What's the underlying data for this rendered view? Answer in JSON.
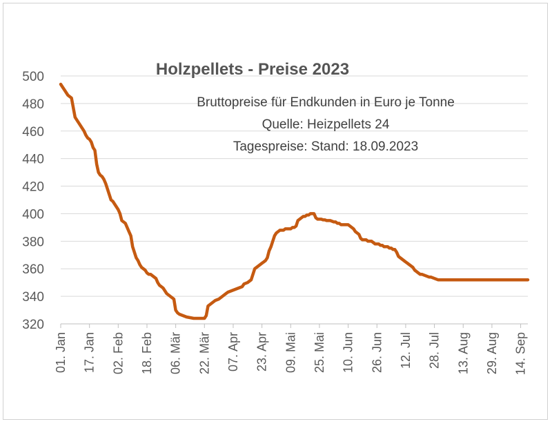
{
  "chart_data": {
    "type": "line",
    "title": "Holzpellets - Preise 2023",
    "subtitle_lines": [
      "Bruttopreise für Endkunden in Euro je Tonne",
      "Quelle: Heizpellets 24",
      "Tagespreise: Stand: 18.09.2023"
    ],
    "xlabel": "",
    "ylabel": "",
    "ylim": [
      320,
      500
    ],
    "yticks": [
      320,
      340,
      360,
      380,
      400,
      420,
      440,
      460,
      480,
      500
    ],
    "grid": true,
    "legend": "none",
    "line_color": "#C55A11",
    "x_range_days": [
      0,
      260
    ],
    "x_tick_labels": [
      "01. Jan",
      "17. Jan",
      "02. Feb",
      "18. Feb",
      "06. Mär",
      "22. Mär",
      "07. Apr",
      "23. Apr",
      "09. Mai",
      "25. Mai",
      "10. Jun",
      "26. Jun",
      "12. Jul",
      "28. Jul",
      "13. Aug",
      "29. Aug",
      "14. Sep"
    ],
    "x_tick_days": [
      0,
      16,
      32,
      48,
      64,
      80,
      96,
      112,
      128,
      144,
      160,
      176,
      192,
      208,
      224,
      240,
      256
    ],
    "series": [
      {
        "x": [
          0,
          1,
          2,
          3,
          4,
          5,
          6,
          8,
          9,
          10,
          11,
          12,
          13,
          14,
          15,
          16,
          17,
          18,
          19,
          20,
          21,
          22,
          23,
          24,
          25,
          26,
          27,
          28,
          29,
          30,
          31,
          32,
          33,
          34,
          35,
          36,
          37,
          38,
          39,
          40,
          41,
          42,
          43,
          44,
          45,
          46,
          47,
          48,
          49,
          50,
          51,
          52,
          53,
          54,
          55,
          56,
          57,
          58,
          59,
          60,
          61,
          62,
          63,
          64,
          65,
          66,
          67,
          68,
          69,
          70,
          72,
          74,
          76,
          77,
          78,
          79,
          80,
          81,
          82,
          83,
          84,
          85,
          86,
          88,
          89,
          90,
          91,
          92,
          93,
          95,
          97,
          99,
          101,
          102,
          104,
          106,
          108,
          110,
          112,
          113,
          114,
          115,
          116,
          117,
          118,
          119,
          120,
          121,
          122,
          123,
          124,
          125,
          126,
          127,
          128,
          129,
          130,
          131,
          132,
          133,
          134,
          135,
          136,
          137,
          138,
          139,
          140,
          141,
          142,
          143,
          144,
          145,
          146,
          147,
          148,
          149,
          150,
          151,
          152,
          153,
          154,
          155,
          156,
          157,
          158,
          159,
          160,
          161,
          162,
          163,
          164,
          165,
          166,
          167,
          168,
          169,
          170,
          171,
          172,
          173,
          174,
          175,
          176,
          177,
          178,
          179,
          180,
          181,
          182,
          183,
          184,
          185,
          186,
          187,
          188,
          189,
          190,
          191,
          192,
          193,
          194,
          195,
          196,
          197,
          198,
          199,
          200,
          201,
          202,
          203,
          204,
          205,
          206,
          207,
          208,
          209,
          210,
          211,
          212,
          213,
          214,
          215,
          216,
          217,
          218,
          219,
          220,
          221,
          222,
          223,
          224,
          225,
          226,
          227,
          228,
          229,
          230,
          231,
          232,
          233,
          234,
          235,
          236,
          237,
          238,
          239,
          240,
          241,
          242,
          243,
          244,
          245,
          246,
          247,
          248,
          249,
          250,
          251,
          252,
          253,
          254,
          255,
          256,
          257,
          258,
          259,
          260
        ],
        "y": [
          494,
          492,
          490,
          488,
          486,
          485,
          484,
          470,
          468,
          466,
          464,
          462,
          460,
          457,
          455,
          454,
          452,
          448,
          446,
          436,
          430,
          428,
          427,
          425,
          422,
          418,
          414,
          410,
          409,
          407,
          405,
          403,
          400,
          395,
          394,
          393,
          390,
          387,
          384,
          376,
          372,
          368,
          366,
          363,
          361,
          360,
          359,
          357,
          356,
          356,
          355,
          354,
          353,
          350,
          348,
          347,
          346,
          344,
          342,
          341,
          340,
          339,
          338,
          330,
          328,
          327,
          326.5,
          326,
          325.5,
          325,
          324.5,
          324,
          324,
          324,
          324,
          324,
          324,
          326,
          333,
          334,
          335,
          336,
          337,
          338,
          339,
          340,
          341,
          342,
          343,
          344,
          345,
          346,
          347,
          349,
          350,
          352,
          360,
          362,
          364,
          365,
          366,
          368,
          373,
          376,
          380,
          384,
          386,
          387,
          388,
          388,
          388,
          389,
          389,
          389,
          389,
          390,
          390,
          391,
          395,
          396,
          397,
          398,
          398,
          399,
          399,
          400,
          400,
          400,
          397,
          396,
          396,
          396,
          395.5,
          395.5,
          395,
          395,
          395,
          394.5,
          394,
          394,
          393,
          393,
          392,
          392,
          392,
          392,
          392,
          391,
          390,
          389,
          387,
          386,
          385,
          382,
          381,
          381,
          381,
          380,
          380,
          380,
          379,
          378,
          378,
          378,
          377,
          377,
          376,
          376,
          376,
          375,
          375,
          374,
          374,
          372,
          369,
          368,
          367,
          366,
          365,
          364,
          363,
          362,
          361,
          359,
          358,
          357,
          356,
          356,
          355.5,
          355,
          354.5,
          354,
          354,
          353.5,
          353,
          352.5,
          352,
          352,
          352,
          352,
          352,
          352,
          352,
          352,
          352,
          352,
          352,
          352,
          352,
          352,
          352,
          352,
          352,
          352,
          352,
          352,
          352,
          352,
          352,
          352,
          352,
          352,
          352,
          352,
          352,
          352,
          352,
          352,
          352,
          352,
          352,
          352,
          352,
          352,
          352,
          352,
          352,
          352,
          352,
          352,
          352,
          352,
          352,
          352,
          352,
          352,
          352
        ]
      }
    ]
  }
}
